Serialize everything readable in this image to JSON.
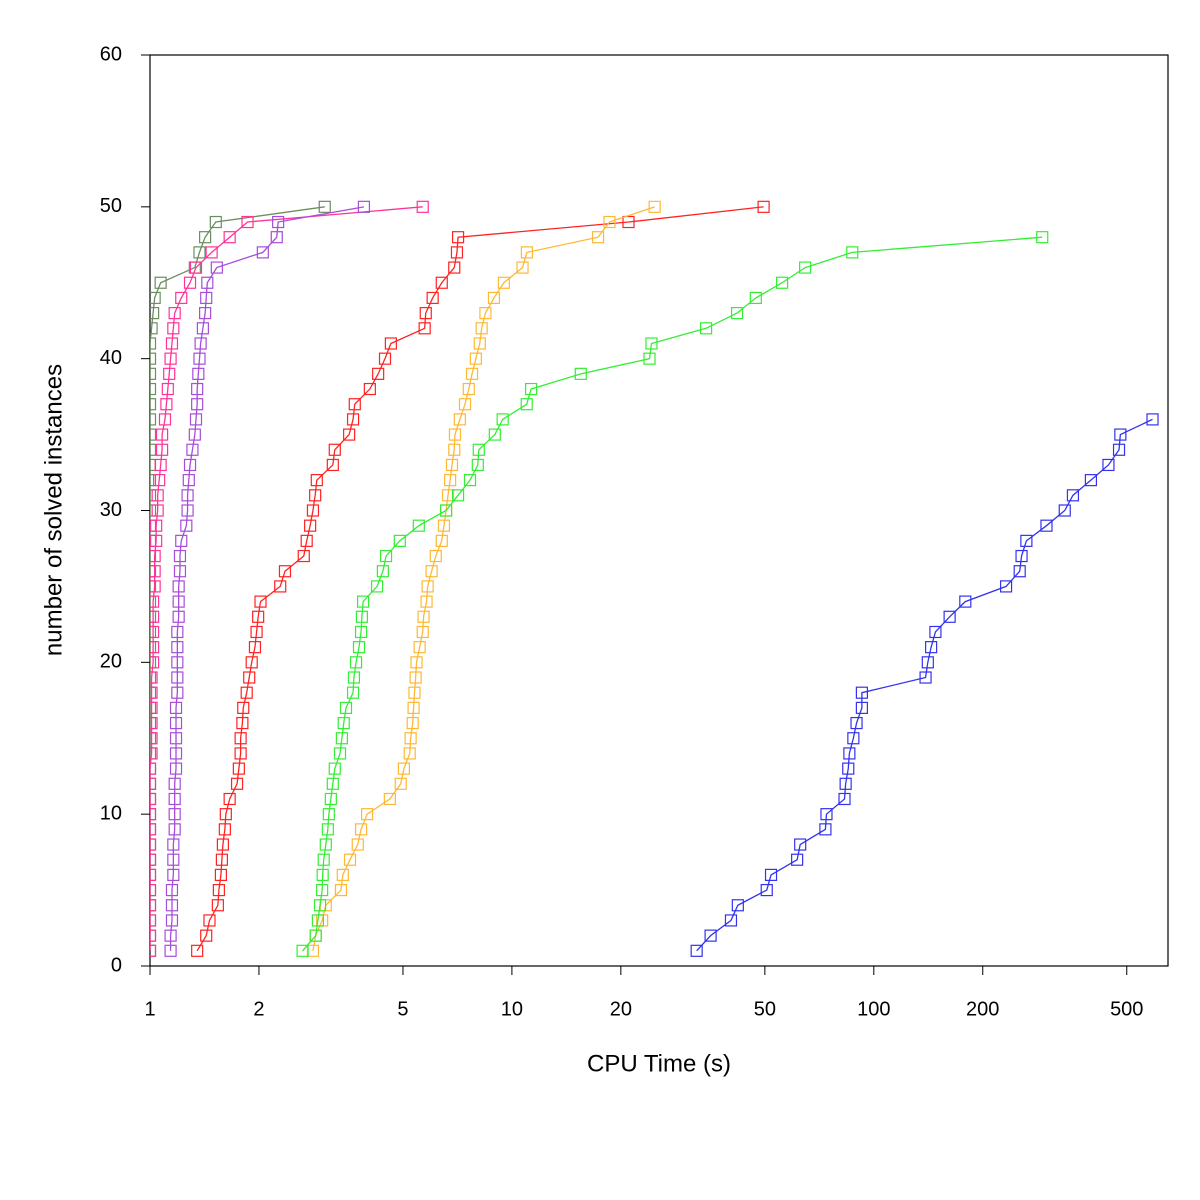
{
  "chart_data": {
    "type": "line",
    "xlabel": "CPU Time (s)",
    "ylabel": "number of solved instances",
    "xscale": "log",
    "xlim": [
      1,
      650
    ],
    "ylim": [
      0,
      60
    ],
    "xticks": [
      1,
      2,
      5,
      10,
      20,
      50,
      100,
      200,
      500
    ],
    "yticks": [
      0,
      10,
      20,
      30,
      40,
      50,
      60
    ],
    "marker": "square",
    "series": [
      {
        "color": "#6b8e5f",
        "x": [
          1,
          1,
          1,
          1,
          1,
          1,
          1,
          1,
          1,
          1,
          1,
          1,
          1,
          1,
          1,
          1,
          1,
          1,
          1,
          1,
          1,
          1,
          1,
          1,
          1,
          1,
          1,
          1,
          1,
          1,
          1,
          1,
          1,
          1,
          1,
          1,
          1,
          1,
          1,
          1,
          1,
          1.01,
          1.02,
          1.03,
          1.07,
          1.33,
          1.37,
          1.42,
          1.52,
          3.04
        ],
        "values": [
          1,
          2,
          3,
          4,
          5,
          6,
          7,
          8,
          9,
          10,
          11,
          12,
          13,
          14,
          15,
          16,
          17,
          18,
          19,
          20,
          21,
          22,
          23,
          24,
          25,
          26,
          27,
          28,
          29,
          30,
          31,
          32,
          33,
          34,
          35,
          36,
          37,
          38,
          39,
          40,
          41,
          42,
          43,
          44,
          45,
          46,
          47,
          48,
          49,
          50
        ]
      },
      {
        "color": "#ff3399",
        "x": [
          1,
          1,
          1,
          1,
          1,
          1,
          1,
          1,
          1,
          1,
          1,
          1,
          1,
          1.01,
          1.01,
          1.01,
          1.01,
          1.01,
          1.01,
          1.02,
          1.02,
          1.02,
          1.02,
          1.02,
          1.03,
          1.03,
          1.03,
          1.04,
          1.04,
          1.05,
          1.05,
          1.06,
          1.07,
          1.08,
          1.08,
          1.1,
          1.11,
          1.12,
          1.13,
          1.14,
          1.15,
          1.16,
          1.17,
          1.22,
          1.29,
          1.34,
          1.48,
          1.66,
          1.86,
          5.67
        ],
        "values": [
          1,
          2,
          3,
          4,
          5,
          6,
          7,
          8,
          9,
          10,
          11,
          12,
          13,
          14,
          15,
          16,
          17,
          18,
          19,
          20,
          21,
          22,
          23,
          24,
          25,
          26,
          27,
          28,
          29,
          30,
          31,
          32,
          33,
          34,
          35,
          36,
          37,
          38,
          39,
          40,
          41,
          42,
          43,
          44,
          45,
          46,
          47,
          48,
          49,
          50
        ]
      },
      {
        "color": "#a64dd9",
        "x": [
          1.14,
          1.14,
          1.15,
          1.15,
          1.15,
          1.16,
          1.16,
          1.16,
          1.17,
          1.17,
          1.17,
          1.17,
          1.18,
          1.18,
          1.18,
          1.18,
          1.18,
          1.19,
          1.19,
          1.19,
          1.19,
          1.19,
          1.2,
          1.2,
          1.2,
          1.21,
          1.21,
          1.22,
          1.26,
          1.27,
          1.27,
          1.28,
          1.29,
          1.31,
          1.33,
          1.34,
          1.35,
          1.35,
          1.36,
          1.37,
          1.38,
          1.4,
          1.42,
          1.43,
          1.44,
          1.53,
          2.05,
          2.24,
          2.26,
          3.9
        ],
        "values": [
          1,
          2,
          3,
          4,
          5,
          6,
          7,
          8,
          9,
          10,
          11,
          12,
          13,
          14,
          15,
          16,
          17,
          18,
          19,
          20,
          21,
          22,
          23,
          24,
          25,
          26,
          27,
          28,
          29,
          30,
          31,
          32,
          33,
          34,
          35,
          36,
          37,
          38,
          39,
          40,
          41,
          42,
          43,
          44,
          45,
          46,
          47,
          48,
          49,
          50
        ]
      },
      {
        "color": "#ff2222",
        "x": [
          1.35,
          1.43,
          1.46,
          1.54,
          1.55,
          1.57,
          1.58,
          1.59,
          1.61,
          1.62,
          1.66,
          1.74,
          1.76,
          1.78,
          1.78,
          1.8,
          1.81,
          1.85,
          1.88,
          1.91,
          1.95,
          1.97,
          1.99,
          2.02,
          2.29,
          2.36,
          2.66,
          2.71,
          2.77,
          2.82,
          2.86,
          2.89,
          3.2,
          3.24,
          3.55,
          3.64,
          3.68,
          4.05,
          4.27,
          4.46,
          4.63,
          5.74,
          5.78,
          6.04,
          6.4,
          6.93,
          7.05,
          7.1,
          21,
          49.6
        ],
        "values": [
          1,
          2,
          3,
          4,
          5,
          6,
          7,
          8,
          9,
          10,
          11,
          12,
          13,
          14,
          15,
          16,
          17,
          18,
          19,
          20,
          21,
          22,
          23,
          24,
          25,
          26,
          27,
          28,
          29,
          30,
          31,
          32,
          33,
          34,
          35,
          36,
          37,
          38,
          39,
          40,
          41,
          42,
          43,
          44,
          45,
          46,
          47,
          48,
          49,
          50
        ]
      },
      {
        "color": "#ffb833",
        "x": [
          2.82,
          2.87,
          2.99,
          3.06,
          3.37,
          3.41,
          3.57,
          3.75,
          3.83,
          3.98,
          4.6,
          4.93,
          5.03,
          5.22,
          5.25,
          5.32,
          5.35,
          5.38,
          5.42,
          5.45,
          5.56,
          5.67,
          5.7,
          5.81,
          5.85,
          6,
          6.16,
          6.4,
          6.49,
          6.58,
          6.66,
          6.75,
          6.83,
          6.93,
          6.96,
          7.18,
          7.42,
          7.6,
          7.76,
          7.95,
          8.15,
          8.25,
          8.45,
          8.92,
          9.5,
          10.7,
          11,
          17.3,
          18.6,
          24.8
        ],
        "values": [
          1,
          2,
          3,
          4,
          5,
          6,
          7,
          8,
          9,
          10,
          11,
          12,
          13,
          14,
          15,
          16,
          17,
          18,
          19,
          20,
          21,
          22,
          23,
          24,
          25,
          26,
          27,
          28,
          29,
          30,
          31,
          32,
          33,
          34,
          35,
          36,
          37,
          38,
          39,
          40,
          41,
          42,
          43,
          44,
          45,
          46,
          47,
          48,
          49,
          50
        ]
      },
      {
        "color": "#33ee33",
        "x": [
          2.64,
          2.87,
          2.91,
          2.95,
          2.99,
          3,
          3.02,
          3.06,
          3.1,
          3.12,
          3.16,
          3.2,
          3.24,
          3.35,
          3.39,
          3.43,
          3.48,
          3.64,
          3.66,
          3.71,
          3.78,
          3.83,
          3.85,
          3.88,
          4.24,
          4.4,
          4.49,
          4.9,
          5.53,
          6.58,
          7.1,
          7.66,
          8.05,
          8.1,
          8.97,
          9.43,
          10.99,
          11.3,
          15.5,
          24,
          24.3,
          34.4,
          41.9,
          47.2,
          55.8,
          64.6,
          87.2,
          292
        ],
        "values": [
          1,
          2,
          3,
          4,
          5,
          6,
          7,
          8,
          9,
          10,
          11,
          12,
          13,
          14,
          15,
          16,
          17,
          18,
          19,
          20,
          21,
          22,
          23,
          24,
          25,
          26,
          27,
          28,
          29,
          30,
          31,
          32,
          33,
          34,
          35,
          36,
          37,
          38,
          39,
          40,
          41,
          42,
          43,
          44,
          45,
          46,
          47,
          48
        ]
      },
      {
        "color": "#3333ee",
        "x": [
          32.4,
          35.4,
          40.3,
          42.1,
          50.6,
          52,
          61.4,
          62.6,
          73.5,
          74,
          83,
          83.6,
          85,
          85.6,
          87.8,
          89.6,
          92.7,
          92.7,
          139,
          141,
          144,
          148,
          162,
          179,
          232,
          253,
          256,
          264,
          300,
          337,
          355,
          398,
          445,
          476,
          480,
          589
        ],
        "values": [
          1,
          2,
          3,
          4,
          5,
          6,
          7,
          8,
          9,
          10,
          11,
          12,
          13,
          14,
          15,
          16,
          17,
          18,
          19,
          20,
          21,
          22,
          23,
          24,
          25,
          26,
          27,
          28,
          29,
          30,
          31,
          32,
          33,
          34,
          35,
          36
        ]
      }
    ]
  }
}
